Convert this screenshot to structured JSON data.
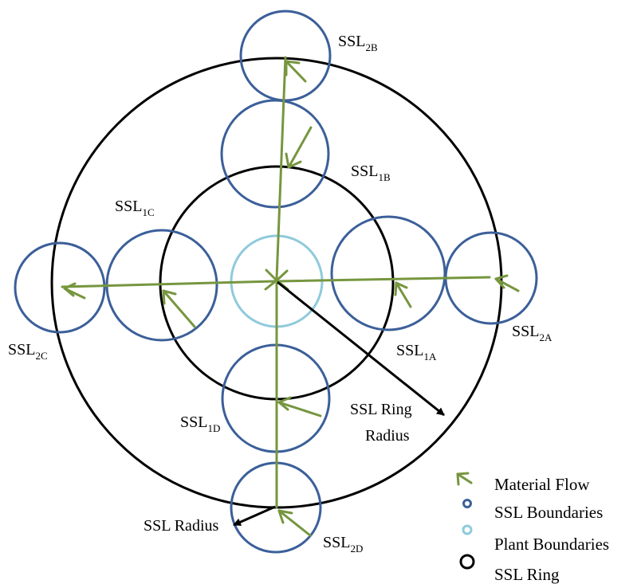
{
  "colors": {
    "ring": "#000000",
    "ssl_boundary": "#3b5f99",
    "plant_boundary": "#8fcadb",
    "material_flow": "#76963f",
    "radius_arrow": "#000000"
  },
  "labels": {
    "ssl_2b": {
      "base": "SSL",
      "sub": "2B"
    },
    "ssl_1b": {
      "base": "SSL",
      "sub": "1B"
    },
    "ssl_1c": {
      "base": "SSL",
      "sub": "1C"
    },
    "ssl_2c": {
      "base": "SSL",
      "sub": "2C"
    },
    "ssl_1a": {
      "base": "SSL",
      "sub": "1A"
    },
    "ssl_2a": {
      "base": "SSL",
      "sub": "2A"
    },
    "ssl_1d": {
      "base": "SSL",
      "sub": "1D"
    },
    "ssl_2d": {
      "base": "SSL",
      "sub": "2D"
    },
    "ssl_ring_radius_line1": "SSL Ring",
    "ssl_ring_radius_line2": "Radius",
    "ssl_radius": "SSL Radius"
  },
  "legend": [
    {
      "symbol": "material-flow-arrow",
      "label": "Material Flow"
    },
    {
      "symbol": "ssl-boundary-circle",
      "label": "SSL Boundaries"
    },
    {
      "symbol": "plant-boundary-circle",
      "label": "Plant Boundaries"
    },
    {
      "symbol": "ssl-ring-circle",
      "label": "SSL Ring"
    }
  ]
}
